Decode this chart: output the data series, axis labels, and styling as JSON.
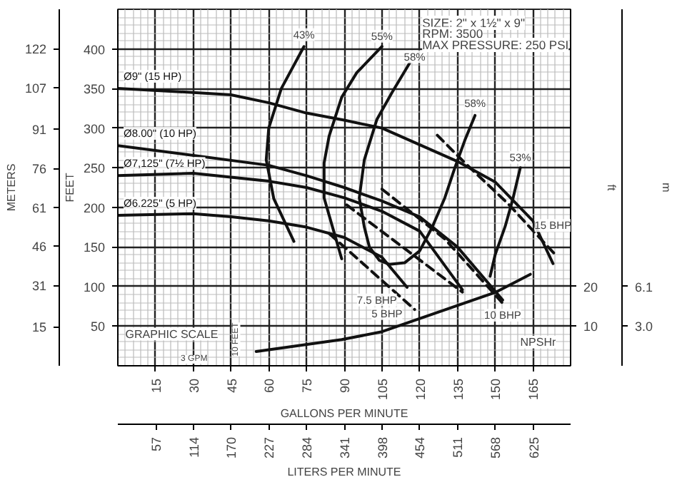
{
  "chart_data": {
    "type": "line",
    "xlabel": "GALLONS PER MINUTE",
    "x2label": "LITERS PER MINUTE",
    "ylabel": "FEET",
    "y2label": "METERS",
    "y3label": "ft",
    "xlim": [
      0,
      180
    ],
    "xticks": [
      15,
      30,
      45,
      60,
      75,
      90,
      105,
      120,
      135,
      150,
      165
    ],
    "x2lim": [
      0,
      681.4
    ],
    "x2ticks": [
      57,
      114,
      170,
      227,
      284,
      341,
      398,
      454,
      511,
      568,
      625
    ],
    "ylim": [
      0,
      450
    ],
    "yticks": [
      50,
      100,
      150,
      200,
      250,
      300,
      350,
      400
    ],
    "y2lim": [
      0,
      137.2
    ],
    "y2ticks": [
      15,
      31,
      46,
      61,
      76,
      91,
      107,
      122
    ],
    "y3lim": [
      0,
      90
    ],
    "y3ticks": [
      10,
      20
    ],
    "grid": true,
    "line_style": "solid",
    "series": [
      {
        "name": "Ø9\" (15 HP)",
        "color": "#111111",
        "x": [
          0,
          30,
          45,
          60,
          75,
          90,
          105,
          135,
          150,
          165,
          173
        ],
        "values": [
          350,
          345,
          342,
          332,
          319,
          310,
          300,
          258,
          232,
          183,
          129
        ]
      },
      {
        "name": "Ø8.00\" (10 HP)",
        "color": "#111111",
        "x": [
          0,
          60,
          75,
          90,
          105,
          120,
          135,
          153
        ],
        "values": [
          278,
          253,
          240,
          225,
          208,
          188,
          150,
          83
        ]
      },
      {
        "name": "Ø7,125\" (7½ HP)",
        "color": "#111111",
        "x": [
          0,
          30,
          60,
          75,
          90,
          105,
          120,
          137
        ],
        "values": [
          240,
          243,
          233,
          225,
          212,
          195,
          170,
          96
        ]
      },
      {
        "name": "Ø6.225\" (5 HP)",
        "color": "#111111",
        "x": [
          0,
          30,
          45,
          60,
          75,
          90,
          105,
          115
        ],
        "values": [
          190,
          192,
          188,
          183,
          175,
          162,
          137,
          99
        ]
      },
      {
        "color": "#111111",
        "x": [
          74,
          65,
          60,
          59,
          62,
          70
        ],
        "values": [
          403,
          350,
          300,
          260,
          211,
          157
        ]
      },
      {
        "color": "#111111",
        "x": [
          105,
          95,
          89,
          84,
          82,
          82,
          85,
          89
        ],
        "values": [
          403,
          370,
          339,
          290,
          256,
          212,
          179,
          135
        ]
      },
      {
        "color": "#111111",
        "x": [
          116,
          109,
          103,
          98,
          96,
          98,
          100,
          104,
          108,
          114,
          120,
          125,
          130,
          134,
          138,
          142
        ],
        "values": [
          382,
          345,
          311,
          260,
          212,
          175,
          150,
          133,
          128,
          130,
          145,
          175,
          212,
          250,
          285,
          316
        ]
      },
      {
        "color": "#111111",
        "x": [
          160,
          157,
          154,
          150,
          148
        ],
        "values": [
          250,
          210,
          176,
          140,
          113
        ]
      },
      {
        "color": "#111111",
        "line_style": "dashed",
        "x": [
          127,
          138,
          155,
          174
        ],
        "values": [
          291,
          256,
          205,
          140
        ]
      },
      {
        "color": "#111111",
        "line_style": "dashed",
        "x": [
          105,
          130,
          153
        ],
        "values": [
          223,
          160,
          79
        ]
      },
      {
        "color": "#111111",
        "line_style": "dashed",
        "x": [
          91,
          137
        ],
        "values": [
          203,
          93
        ]
      },
      {
        "color": "#111111",
        "line_style": "dashed",
        "x": [
          84,
          118
        ],
        "values": [
          167,
          71
        ]
      },
      {
        "color": "#111111",
        "axis": "y3",
        "x": [
          55,
          89,
          105,
          150,
          164
        ],
        "values": [
          3.6,
          6.6,
          8.6,
          18.5,
          23.1
        ]
      }
    ],
    "annotations": [
      "SIZE: 2\" x 1½\" x 9\"",
      "RPM: 3500",
      "MAX PRESSURE: 250 PSI",
      "GRAPHIC SCALE",
      "3 GPM",
      "10 FEET",
      "NPSHr",
      "m",
      "3.0",
      "6.1",
      {
        "text": "43%",
        "x": 74,
        "y": 418
      },
      {
        "text": "55%",
        "x": 105,
        "y": 416
      },
      {
        "text": "58%",
        "x": 118,
        "y": 390
      },
      {
        "text": "58%",
        "x": 142,
        "y": 331
      },
      {
        "text": "53%",
        "x": 160,
        "y": 263
      },
      {
        "text": "15 BHP",
        "x": 173,
        "y": 177
      },
      {
        "text": "10 BHP",
        "x": 153,
        "y": 64
      },
      {
        "text": "7.5 BHP",
        "x": 103,
        "y": 83
      },
      {
        "text": "5 BHP",
        "x": 107,
        "y": 66
      }
    ]
  }
}
